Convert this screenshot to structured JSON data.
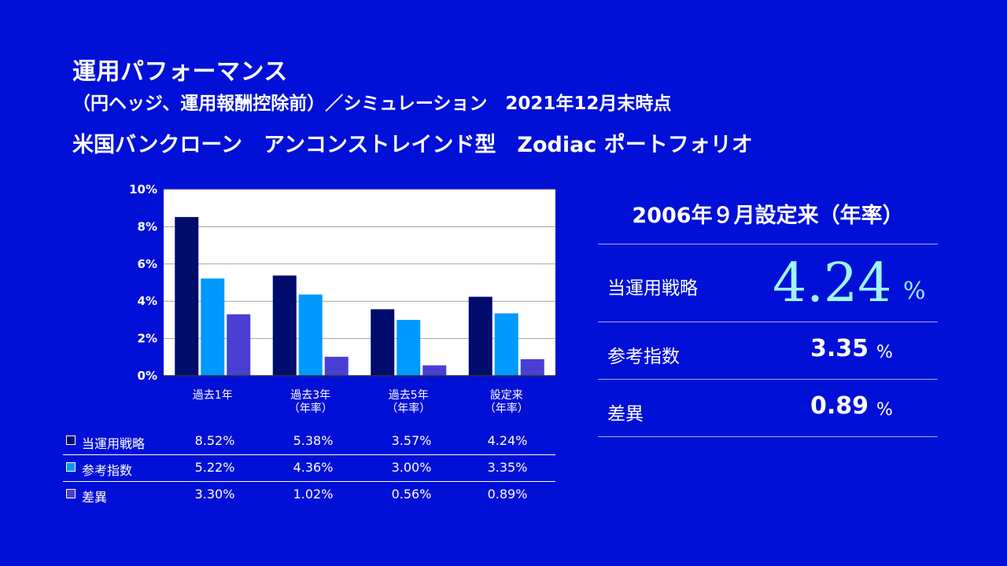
{
  "title": {
    "line1": "運用パフォーマンス",
    "line2": "（円ヘッジ、運用報酬控除前）／シミュレーション　2021年12月末時点",
    "line3": "米国バンクローン　アンコンストレインド型　Zodiac ポートフォリオ"
  },
  "colors": {
    "background": "#0010D6",
    "series_1": "#000C6B",
    "series_2": "#0099FF",
    "series_3": "#4A3FD3",
    "highlight": "#9FF5F5"
  },
  "chart_data": {
    "type": "bar",
    "categories": [
      [
        "過去1年"
      ],
      [
        "過去3年",
        "（年率）"
      ],
      [
        "過去5年",
        "（年率）"
      ],
      [
        "設定来",
        "（年率）"
      ]
    ],
    "series": [
      {
        "name": "当運用戦略",
        "values": [
          8.52,
          5.38,
          3.57,
          4.24
        ]
      },
      {
        "name": "参考指数",
        "values": [
          5.22,
          4.36,
          3.0,
          3.35
        ]
      },
      {
        "name": "差異",
        "values": [
          3.3,
          1.02,
          0.56,
          0.89
        ]
      }
    ],
    "ylim": [
      0,
      10
    ],
    "yticks": [
      "0%",
      "2%",
      "4%",
      "6%",
      "8%",
      "10%"
    ],
    "grid": true,
    "legend": "table-below"
  },
  "table": {
    "rows": [
      {
        "name": "当運用戦略",
        "values": [
          "8.52%",
          "5.38%",
          "3.57%",
          "4.24%"
        ]
      },
      {
        "name": "参考指数",
        "values": [
          "5.22%",
          "4.36%",
          "3.00%",
          "3.35%"
        ]
      },
      {
        "name": "差異",
        "values": [
          "3.30%",
          "1.02%",
          "0.56%",
          "0.89%"
        ]
      }
    ]
  },
  "summary": {
    "title": "2006年９月設定来（年率）",
    "strategy": {
      "label": "当運用戦略",
      "value": "4.24",
      "unit": "%"
    },
    "index": {
      "label": "参考指数",
      "value": "3.35",
      "unit": "%"
    },
    "diff": {
      "label": "差異",
      "value": "0.89",
      "unit": "%"
    }
  }
}
